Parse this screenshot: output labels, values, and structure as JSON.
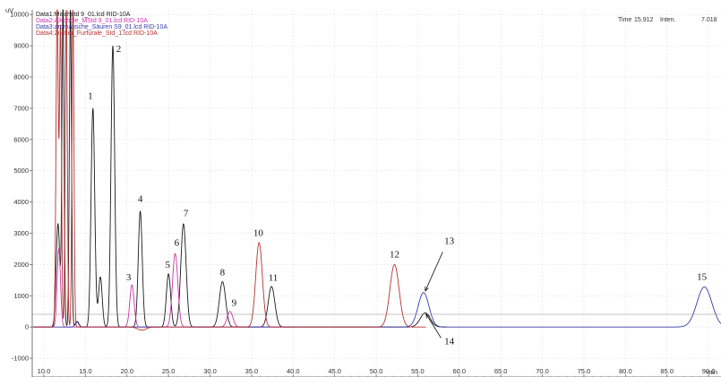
{
  "chart_data": {
    "type": "line",
    "title": "",
    "y_unit": "uV",
    "xlabel": "min",
    "xlim": [
      8.6,
      91.5
    ],
    "ylim": [
      -1600,
      10150
    ],
    "x_ticks": [
      "10.0",
      "15.0",
      "20.0",
      "25.0",
      "30.0",
      "35.0",
      "40.0",
      "45.0",
      "50.0",
      "55.0",
      "60.0",
      "65.0",
      "70.0",
      "75.0",
      "80.0",
      "85.0",
      "90.0"
    ],
    "y_ticks": [
      "10000",
      "9000",
      "8000",
      "7000",
      "6000",
      "5000",
      "4000",
      "3000",
      "2000",
      "1000",
      "0",
      "-1000"
    ],
    "header": {
      "time_label": "Time",
      "time_value": "15.912",
      "inten_label": "Inten.",
      "inten_value": "7.018"
    },
    "series": [
      {
        "name": "Data1:Mischstd 9_01.lcd RID-10A",
        "color": "#1a1a1a",
        "baseline": 0,
        "xend": 58.5,
        "peaks": [
          {
            "x": 11.7,
            "h": 3300,
            "w": 0.22
          },
          {
            "x": 12.3,
            "h": 10200,
            "w": 0.13
          },
          {
            "x": 13.2,
            "h": 10200,
            "w": 0.13
          },
          {
            "x": 14.0,
            "h": 160,
            "w": 0.2
          },
          {
            "x": 15.9,
            "h": 7000,
            "w": 0.22
          },
          {
            "x": 16.8,
            "h": 1600,
            "w": 0.22
          },
          {
            "x": 18.3,
            "h": 9000,
            "w": 0.22
          },
          {
            "x": 21.6,
            "h": 3700,
            "w": 0.24
          },
          {
            "x": 25.0,
            "h": 1700,
            "w": 0.26
          },
          {
            "x": 26.8,
            "h": 3300,
            "w": 0.32
          },
          {
            "x": 31.5,
            "h": 1450,
            "w": 0.38
          },
          {
            "x": 37.4,
            "h": 1300,
            "w": 0.4
          },
          {
            "x": 55.9,
            "h": 450,
            "w": 0.6
          }
        ]
      },
      {
        "name": "Data2:Alkohole_MStd 9_01.lcd RID-10A",
        "color": "#cc33aa",
        "baseline": 0,
        "xend": 40.0,
        "peaks": [
          {
            "x": 11.8,
            "h": 2500,
            "w": 0.2
          },
          {
            "x": 20.6,
            "h": 1350,
            "w": 0.26
          },
          {
            "x": 25.8,
            "h": 2350,
            "w": 0.32
          },
          {
            "x": 32.4,
            "h": 500,
            "w": 0.35
          }
        ]
      },
      {
        "name": "Data3:aromatische_Säuren S9_01.lcd RID-10A",
        "color": "#3a3aa8",
        "baseline": 0,
        "xend": 91.5,
        "peaks": [
          {
            "x": 14.0,
            "h": 180,
            "w": 0.22
          },
          {
            "x": 55.7,
            "h": 1100,
            "w": 0.65
          },
          {
            "x": 89.5,
            "h": 1280,
            "w": 0.9
          }
        ]
      },
      {
        "name": "Data4:Zucker_Furfurale_Std_1.lcd RID-10A",
        "color": "#b83030",
        "baseline": 0,
        "xend": 56.0,
        "peaks": [
          {
            "x": 11.6,
            "h": 10200,
            "w": 0.14
          },
          {
            "x": 12.0,
            "h": 9500,
            "w": 0.12
          },
          {
            "x": 12.7,
            "h": 10200,
            "w": 0.12
          },
          {
            "x": 13.5,
            "h": 10200,
            "w": 0.12
          },
          {
            "x": 21.8,
            "h": -100,
            "w": 0.5
          },
          {
            "x": 35.9,
            "h": 2700,
            "w": 0.4
          },
          {
            "x": 52.2,
            "h": 2000,
            "w": 0.55
          }
        ]
      }
    ],
    "peak_labels": [
      {
        "text": "1",
        "x": 15.6,
        "y": 7300
      },
      {
        "text": "2",
        "x": 19.0,
        "y": 8800
      },
      {
        "text": "3",
        "x": 20.2,
        "y": 1500
      },
      {
        "text": "4",
        "x": 21.6,
        "y": 4000
      },
      {
        "text": "5",
        "x": 24.9,
        "y": 1900
      },
      {
        "text": "6",
        "x": 26.0,
        "y": 2600
      },
      {
        "text": "7",
        "x": 27.1,
        "y": 3550
      },
      {
        "text": "8",
        "x": 31.5,
        "y": 1650
      },
      {
        "text": "9",
        "x": 32.9,
        "y": 680
      },
      {
        "text": "10",
        "x": 35.8,
        "y": 2920
      },
      {
        "text": "11",
        "x": 37.6,
        "y": 1480
      },
      {
        "text": "12",
        "x": 52.2,
        "y": 2220
      },
      {
        "text": "13",
        "x": 58.8,
        "y": 2650
      },
      {
        "text": "14",
        "x": 58.8,
        "y": -550
      },
      {
        "text": "15",
        "x": 89.2,
        "y": 1510
      }
    ],
    "annotations": [
      {
        "x1": 58.0,
        "y1": 2400,
        "x2": 55.9,
        "y2": 1150
      },
      {
        "x1": 57.8,
        "y1": -350,
        "x2": 56.0,
        "y2": 420
      }
    ]
  }
}
